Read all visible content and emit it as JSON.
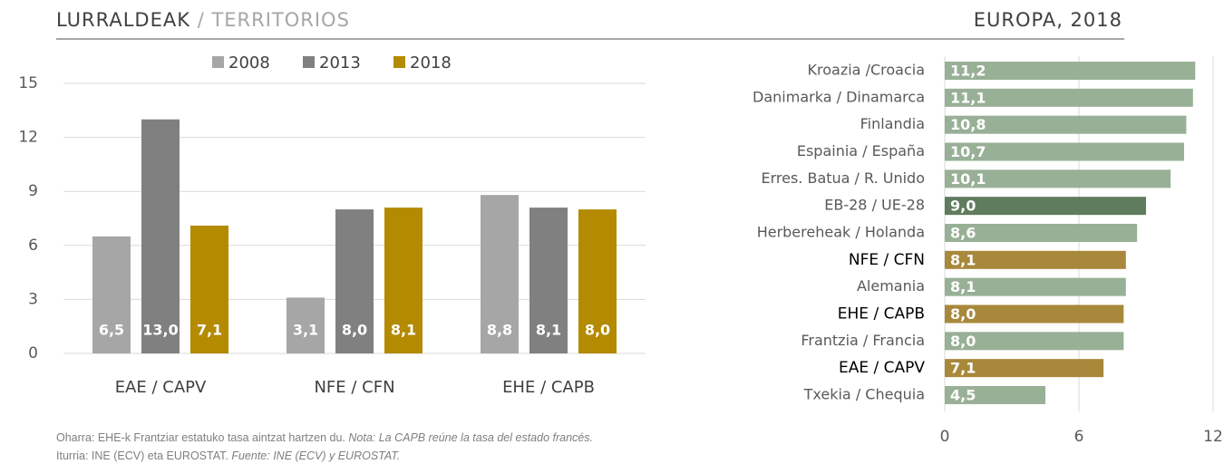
{
  "header": {
    "left_title": "LURRALDEAK",
    "left_subtitle": "/ TERRITORIOS",
    "right_title": "EUROPA, 2018"
  },
  "chart_data": [
    {
      "type": "bar",
      "categories": [
        "EAE / CAPV",
        "NFE / CFN",
        "EHE / CAPB"
      ],
      "series": [
        {
          "name": "2008",
          "color": "#a6a6a6",
          "values": [
            6.5,
            3.1,
            8.8
          ],
          "value_labels": [
            "6,5",
            "3,1",
            "8,8"
          ]
        },
        {
          "name": "2013",
          "color": "#808080",
          "values": [
            13.0,
            8.0,
            8.1
          ],
          "value_labels": [
            "13,0",
            "8,0",
            "8,1"
          ]
        },
        {
          "name": "2018",
          "color": "#b38a00",
          "values": [
            7.1,
            8.1,
            8.0
          ],
          "value_labels": [
            "7,1",
            "8,1",
            "8,0"
          ]
        }
      ],
      "ylim": [
        0,
        15
      ],
      "yticks": [
        0,
        3,
        6,
        9,
        12,
        15
      ],
      "grid": true
    },
    {
      "type": "barh",
      "categories": [
        "Kroazia /Croacia",
        "Danimarka / Dinamarca",
        "Finlandia",
        "Espainia / España",
        "Erres. Batua / R. Unido",
        "EB-28 / UE-28",
        "Herbereheak / Holanda",
        "NFE / CFN",
        "Alemania",
        "EHE / CAPB",
        "Frantzia / Francia",
        "EAE / CAPV",
        "Txekia / Chequia"
      ],
      "values": [
        11.2,
        11.1,
        10.8,
        10.7,
        10.1,
        9.0,
        8.6,
        8.1,
        8.1,
        8.0,
        8.0,
        7.1,
        4.5
      ],
      "value_labels": [
        "11,2",
        "11,1",
        "10,8",
        "10,7",
        "10,1",
        "9,0",
        "8,6",
        "8,1",
        "8,1",
        "8,0",
        "8,0",
        "7,1",
        "4,5"
      ],
      "colors": [
        "#98b096",
        "#98b096",
        "#98b096",
        "#98b096",
        "#98b096",
        "#5f7c5e",
        "#98b096",
        "#a8883a",
        "#98b096",
        "#a8883a",
        "#98b096",
        "#a8883a",
        "#98b096"
      ],
      "highlight_color": "#a8883a",
      "xlim": [
        0,
        12
      ],
      "xticks": [
        0,
        6,
        12
      ],
      "grid": true
    }
  ],
  "notes": [
    {
      "text": "Oharra: EHE-k Frantziar estatuko tasa aintzat hartzen du. ",
      "italic": "Nota: La CAPB reúne la tasa del estado francés."
    },
    {
      "text": "Iturria: INE (ECV) eta EUROSTAT. ",
      "italic": "Fuente: INE (ECV) y EUROSTAT."
    }
  ]
}
